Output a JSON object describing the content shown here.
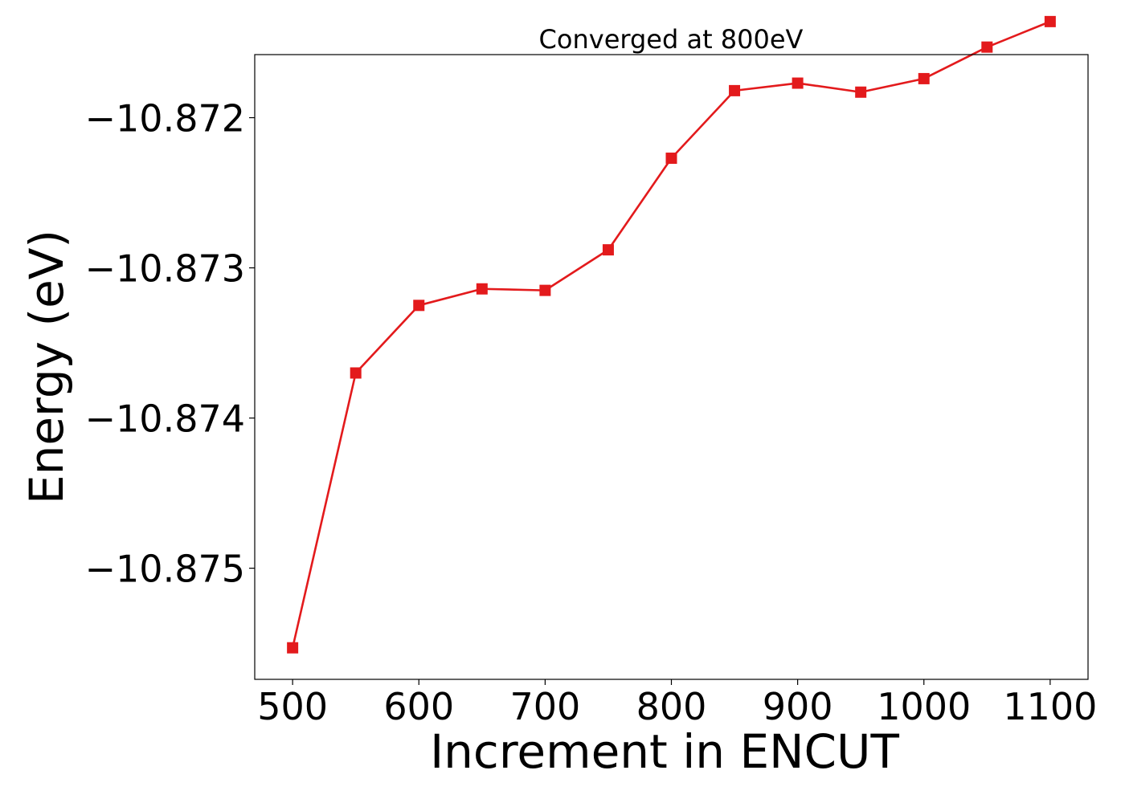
{
  "chart_data": {
    "type": "line",
    "title": "Converged at 800eV",
    "xlabel": "Increment in ENCUT",
    "ylabel": "Energy (eV)",
    "xlim": [
      470,
      1130
    ],
    "ylim": [
      -10.87574,
      -10.87158
    ],
    "grid": false,
    "legend": "none",
    "x_ticks": [
      500,
      600,
      700,
      800,
      900,
      1000,
      1100
    ],
    "x_tick_labels": [
      "500",
      "600",
      "700",
      "800",
      "900",
      "1000",
      "1100"
    ],
    "y_ticks": [
      -10.875,
      -10.874,
      -10.873,
      -10.872
    ],
    "y_tick_labels": [
      "−10.875",
      "−10.874",
      "−10.873",
      "−10.872"
    ],
    "series": [
      {
        "color": "#e31a1c",
        "marker": "square",
        "x": [
          500,
          550,
          600,
          650,
          700,
          750,
          800,
          850,
          900,
          950,
          1000,
          1050,
          1100
        ],
        "y": [
          -10.87553,
          -10.8737,
          -10.87325,
          -10.87314,
          -10.87315,
          -10.87288,
          -10.87227,
          -10.87182,
          -10.87177,
          -10.87183,
          -10.87174,
          -10.87153,
          -10.87136
        ]
      }
    ]
  }
}
